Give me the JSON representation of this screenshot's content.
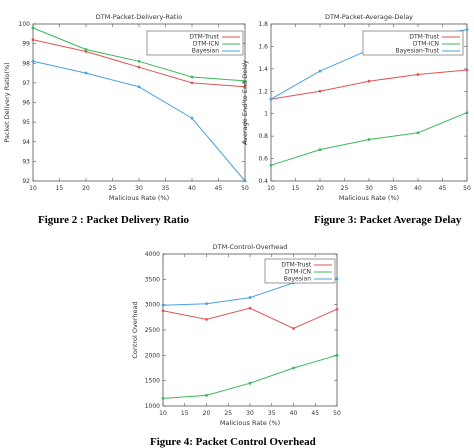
{
  "chart_data": [
    {
      "type": "line",
      "title": "DTM-Packet-Delivery-Ratio",
      "xlabel": "Malicious Rate (%)",
      "ylabel": "Packet Delivery Ratio(%)",
      "x": [
        10,
        20,
        30,
        40,
        50
      ],
      "xlim": [
        10,
        50
      ],
      "ylim": [
        92,
        100
      ],
      "xticks": [
        10,
        15,
        20,
        25,
        30,
        35,
        40,
        45,
        50
      ],
      "yticks": [
        92,
        93,
        94,
        95,
        96,
        97,
        98,
        99,
        100
      ],
      "legend_position": "top-right",
      "grid": false,
      "series": [
        {
          "name": "DTM-Trust",
          "color": "#e05555",
          "marker": "plus",
          "values": [
            99.2,
            98.6,
            97.8,
            97.0,
            96.8
          ]
        },
        {
          "name": "DTM-ICN",
          "color": "#3cb85c",
          "marker": "x",
          "values": [
            99.8,
            98.7,
            98.1,
            97.3,
            97.1
          ]
        },
        {
          "name": "Bayesian",
          "color": "#4aa0e0",
          "marker": "star",
          "values": [
            98.1,
            97.5,
            96.8,
            95.2,
            92.0
          ]
        }
      ]
    },
    {
      "type": "line",
      "title": "DTM-Packet-Average-Delay",
      "xlabel": "Malicious Rate (%)",
      "ylabel": "Average End to End Delay",
      "x": [
        10,
        20,
        30,
        40,
        50
      ],
      "xlim": [
        10,
        50
      ],
      "ylim": [
        0.4,
        1.8
      ],
      "xticks": [
        10,
        15,
        20,
        25,
        30,
        35,
        40,
        45,
        50
      ],
      "yticks": [
        0.4,
        0.6,
        0.8,
        1,
        1.2,
        1.4,
        1.6,
        1.8
      ],
      "legend_position": "top-right",
      "grid": false,
      "series": [
        {
          "name": "DTM-Trust",
          "color": "#e05555",
          "marker": "plus",
          "values": [
            1.13,
            1.2,
            1.29,
            1.35,
            1.39
          ]
        },
        {
          "name": "DTM-ICN",
          "color": "#3cb85c",
          "marker": "x",
          "values": [
            0.54,
            0.68,
            0.77,
            0.83,
            1.01
          ]
        },
        {
          "name": "Bayesian-Trust",
          "color": "#4aa0e0",
          "marker": "star",
          "values": [
            1.13,
            1.38,
            1.57,
            1.68,
            1.75
          ]
        }
      ]
    },
    {
      "type": "line",
      "title": "DTM-Control-Overhead",
      "xlabel": "Malicious Rate (%)",
      "ylabel": "Control Overhead",
      "x": [
        10,
        20,
        30,
        40,
        50
      ],
      "xlim": [
        10,
        50
      ],
      "ylim": [
        1000,
        4000
      ],
      "xticks": [
        10,
        15,
        20,
        25,
        30,
        35,
        40,
        45,
        50
      ],
      "yticks": [
        1000,
        1500,
        2000,
        2500,
        3000,
        3500,
        4000
      ],
      "legend_position": "top-right",
      "grid": false,
      "series": [
        {
          "name": "DTM-Trust",
          "color": "#e05555",
          "marker": "plus",
          "values": [
            2880,
            2710,
            2930,
            2530,
            2910
          ]
        },
        {
          "name": "DTM-ICN",
          "color": "#3cb85c",
          "marker": "x",
          "values": [
            1150,
            1210,
            1450,
            1750,
            2000
          ]
        },
        {
          "name": "Bayesian",
          "color": "#4aa0e0",
          "marker": "star",
          "values": [
            2990,
            3020,
            3140,
            3430,
            3510
          ]
        }
      ]
    }
  ],
  "captions": {
    "fig2": "Figure 2 : Packet Delivery Ratio",
    "fig3": "Figure 3: Packet Average Delay",
    "fig4": "Figure 4: Packet Control Overhead"
  }
}
